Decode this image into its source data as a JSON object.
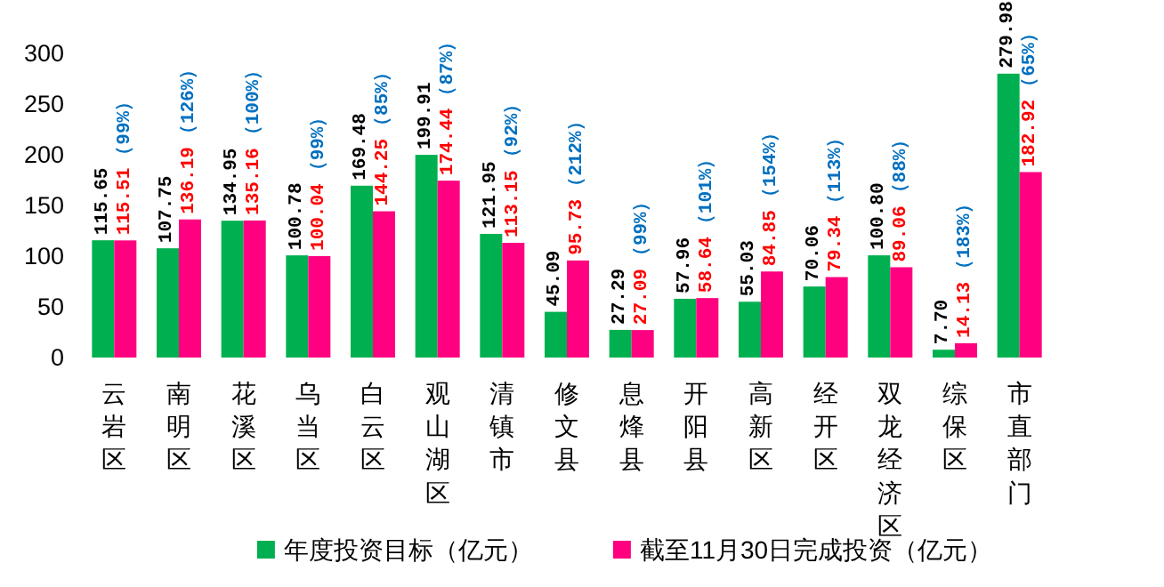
{
  "chart_data": {
    "type": "bar",
    "categories": [
      "云岩区",
      "南明区",
      "花溪区",
      "乌当区",
      "白云区",
      "观山湖区",
      "清镇市",
      "修文县",
      "息烽县",
      "开阳县",
      "高新区",
      "经开区",
      "双龙经济区",
      "综保区",
      "市直部门"
    ],
    "series": [
      {
        "name": "年度投资目标（亿元）",
        "color": "#00b050",
        "values": [
          115.65,
          107.75,
          134.95,
          100.78,
          169.48,
          199.91,
          121.95,
          45.09,
          27.29,
          57.96,
          55.03,
          70.06,
          100.8,
          7.7,
          279.98
        ],
        "value_labels": [
          "115.65",
          "107.75",
          "134.95",
          "100.78",
          "169.48",
          "199.91",
          "121.95",
          "45.09",
          "27.29",
          "57.96",
          "55.03",
          "70.06",
          "100.80",
          "7.70",
          "279.98"
        ]
      },
      {
        "name": "截至11月30日完成投资（亿元）",
        "color": "#ff0080",
        "values": [
          115.51,
          136.19,
          135.16,
          100.04,
          144.25,
          174.44,
          113.15,
          95.73,
          27.09,
          58.64,
          84.85,
          79.34,
          89.06,
          14.13,
          182.92
        ],
        "value_labels": [
          "115.51",
          "136.19",
          "135.16",
          "100.04",
          "144.25",
          "174.44",
          "113.15",
          "95.73",
          "27.09",
          "58.64",
          "84.85",
          "79.34",
          "89.06",
          "14.13",
          "182.92"
        ]
      }
    ],
    "ylim": [
      0,
      300
    ],
    "yticks": [
      0,
      50,
      100,
      150,
      200,
      250,
      300
    ],
    "legend": "bottom",
    "annotations": [
      "（99%）",
      "（126%）",
      "（100%）",
      "（99%）",
      "（85%）",
      "（87%）",
      "（92%）",
      "（212%）",
      "（99%）",
      "（101%）",
      "（154%）",
      "（113%）",
      "（88%）",
      "（183%）",
      "（65%）"
    ]
  }
}
